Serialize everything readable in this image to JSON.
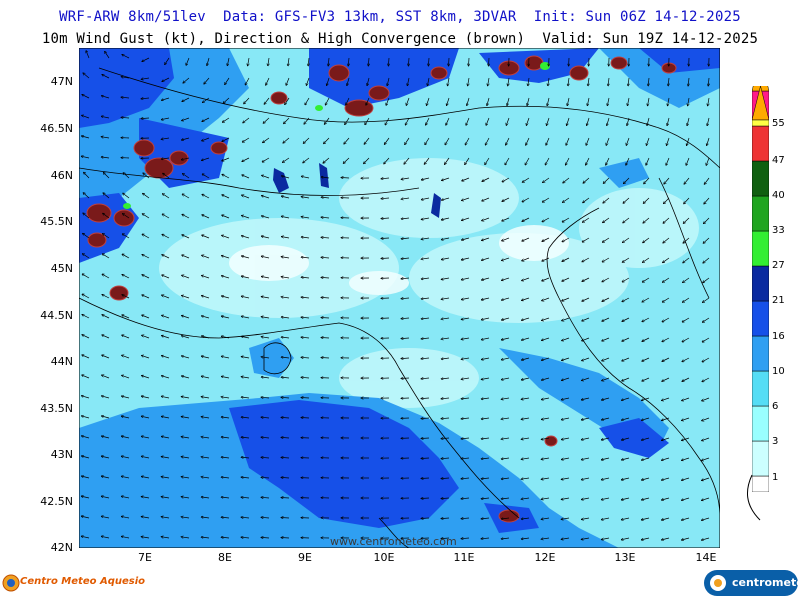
{
  "header": {
    "line1": "WRF-ARW 8km/51lev  Data: GFS-FV3 13km, SST 8km, 3DVAR  Init: Sun 06Z 14-12-2025",
    "line2": "10m Wind Gust (kt), Direction & High Convergence (brown)  Valid: Sun 19Z 14-12-2025"
  },
  "axes": {
    "lat_labels": [
      "47N",
      "46.5N",
      "46N",
      "45.5N",
      "45N",
      "44.5N",
      "44N",
      "43.5N",
      "43N",
      "42.5N",
      "42N"
    ],
    "lon_labels": [
      "7E",
      "8E",
      "9E",
      "10E",
      "11E",
      "12E",
      "13E",
      "14E"
    ]
  },
  "colorbar": {
    "labels": [
      "55",
      "47",
      "40",
      "33",
      "27",
      "21",
      "16",
      "10",
      "6",
      "3",
      "1"
    ],
    "colors": [
      "#ffffff",
      "#ccffff",
      "#99ffff",
      "#55ddf5",
      "#2f9ff2",
      "#1650e8",
      "#0a2aa0",
      "#33ee33",
      "#1fa51f",
      "#106010",
      "#ee3333",
      "#ff1a88",
      "#ffff44",
      "#ffaa00"
    ],
    "units": "kt"
  },
  "watermark": "www.centrometeo.com",
  "logos": {
    "left": "Centro Meteo Aquesio",
    "right": "centrometeo"
  },
  "colors": {
    "convergence": "#7a1a1a",
    "land_boundary": "#000000",
    "wind_arrow": "#000000"
  }
}
